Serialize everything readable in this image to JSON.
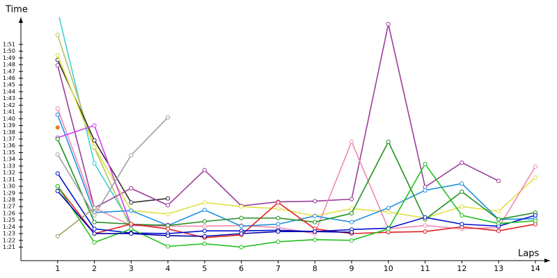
{
  "chart_data": {
    "type": "line",
    "x_label": "Laps",
    "y_label": "Time",
    "x": [
      1,
      2,
      3,
      4,
      5,
      6,
      7,
      8,
      9,
      10,
      11,
      12,
      13,
      14
    ],
    "xlim": [
      0,
      14.4
    ],
    "xticks": [
      1,
      2,
      3,
      4,
      5,
      6,
      7,
      8,
      9,
      10,
      11,
      12,
      13,
      14
    ],
    "ylim": [
      79,
      115
    ],
    "yticks": [
      {
        "value": 81,
        "label": "1:21"
      },
      {
        "value": 82,
        "label": "1:22"
      },
      {
        "value": 83,
        "label": "1:23"
      },
      {
        "value": 84,
        "label": "1:24"
      },
      {
        "value": 85,
        "label": "1:25"
      },
      {
        "value": 86,
        "label": "1:26"
      },
      {
        "value": 87,
        "label": "1:27"
      },
      {
        "value": 88,
        "label": "1:28"
      },
      {
        "value": 89,
        "label": "1:29"
      },
      {
        "value": 90,
        "label": "1:30"
      },
      {
        "value": 91,
        "label": "1:31"
      },
      {
        "value": 92,
        "label": "1:32"
      },
      {
        "value": 93,
        "label": "1:33"
      },
      {
        "value": 94,
        "label": "1:34"
      },
      {
        "value": 95,
        "label": "1:35"
      },
      {
        "value": 96,
        "label": "1:36"
      },
      {
        "value": 97,
        "label": "1:37"
      },
      {
        "value": 98,
        "label": "1:38"
      },
      {
        "value": 99,
        "label": "1:39"
      },
      {
        "value": 100,
        "label": "1:40"
      },
      {
        "value": 101,
        "label": "1:41"
      },
      {
        "value": 102,
        "label": "1:42"
      },
      {
        "value": 103,
        "label": "1:43"
      },
      {
        "value": 104,
        "label": "1:44"
      },
      {
        "value": 105,
        "label": "1:45"
      },
      {
        "value": 106,
        "label": "1:46"
      },
      {
        "value": 107,
        "label": "1:47"
      },
      {
        "value": 108,
        "label": "1:48"
      },
      {
        "value": 109,
        "label": "1:49"
      },
      {
        "value": 110,
        "label": "1:50"
      },
      {
        "value": 111,
        "label": "1:51"
      }
    ],
    "series": [
      {
        "color": "#40d0d0",
        "values": [
          116,
          93.4,
          84.3,
          84.2,
          null,
          null,
          null,
          null,
          null,
          null,
          null,
          null,
          null,
          null
        ]
      },
      {
        "color": "#b8c060",
        "values": [
          112.4,
          95.7,
          83.7,
          null,
          null,
          null,
          null,
          null,
          null,
          null,
          null,
          null,
          null,
          null
        ]
      },
      {
        "color": "#303030",
        "values": [
          108.7,
          96.8,
          87.6,
          88.2,
          null,
          null,
          null,
          null,
          null,
          null,
          null,
          null,
          null,
          null
        ]
      },
      {
        "color": "#9b3d9b",
        "values": [
          107.9,
          86.8,
          89.7,
          87.2,
          92.4,
          87.1,
          87.7,
          87.8,
          88.1,
          114.0,
          89.9,
          93.5,
          90.8,
          null
        ]
      },
      {
        "color": "#e0e040",
        "values": [
          109.4,
          95.8,
          86.4,
          85.9,
          87.6,
          87.0,
          86.7,
          85.6,
          86.7,
          86.2,
          85.3,
          87.0,
          86.3,
          91.3
        ]
      },
      {
        "color": "#f088b0",
        "values": [
          101.5,
          86.8,
          84.2,
          84.1,
          84.1,
          84.2,
          83.9,
          83.0,
          96.6,
          83.7,
          84.2,
          83.7,
          83.9,
          92.9
        ]
      },
      {
        "color": "#2090e0",
        "values": [
          100.6,
          86.1,
          86.4,
          84.2,
          86.5,
          84.1,
          84.4,
          85.6,
          84.7,
          86.8,
          89.4,
          90.4,
          85.1,
          85.2
        ]
      },
      {
        "color": "#d040f0",
        "values": [
          97.2,
          99.0,
          84.2,
          84.3,
          null,
          null,
          null,
          null,
          null,
          null,
          null,
          null,
          null,
          null
        ]
      },
      {
        "color": "#209020",
        "values": [
          97.0,
          84.7,
          84.4,
          84.2,
          84.8,
          85.3,
          85.3,
          84.7,
          86.0,
          96.6,
          85.1,
          89.2,
          85.1,
          86.1
        ]
      },
      {
        "color": "#a0a0a0",
        "values": [
          94.7,
          85.7,
          94.6,
          100.2,
          null,
          null,
          null,
          null,
          null,
          null,
          null,
          null,
          null,
          null
        ]
      },
      {
        "color": "#f08020",
        "values": [
          98.7,
          null,
          null,
          null,
          null,
          null,
          null,
          null,
          null,
          null,
          null,
          null,
          null,
          null
        ]
      },
      {
        "color": "#e02020",
        "values": [
          90.0,
          83.0,
          84.4,
          83.7,
          82.4,
          82.8,
          87.6,
          83.7,
          83.0,
          83.2,
          83.3,
          84.0,
          83.4,
          84.4
        ]
      },
      {
        "color": "#0010d0",
        "values": [
          91.9,
          83.7,
          83.1,
          83.0,
          83.4,
          83.4,
          83.5,
          83.3,
          83.6,
          83.8,
          85.4,
          84.4,
          84.1,
          85.7
        ]
      },
      {
        "color": "#20c020",
        "values": [
          90.0,
          81.7,
          83.7,
          81.1,
          81.5,
          81.0,
          81.8,
          82.1,
          82.0,
          83.7,
          93.3,
          85.7,
          84.5,
          84.9
        ]
      },
      {
        "color": "#a0a060",
        "values": [
          82.6,
          86.8,
          null,
          null,
          null,
          null,
          null,
          null,
          null,
          null,
          null,
          null,
          null,
          null
        ]
      },
      {
        "color": "#0000a0",
        "values": [
          89.3,
          83.0,
          83.0,
          82.7,
          82.6,
          83.0,
          83.3,
          83.3,
          83.2,
          null,
          null,
          null,
          null,
          null
        ]
      }
    ]
  }
}
